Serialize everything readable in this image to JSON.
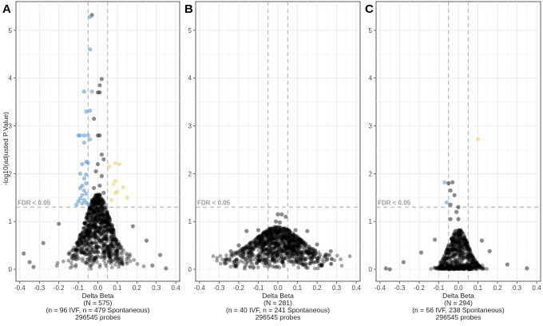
{
  "chart_data": [
    {
      "type": "scatter",
      "panel": "A",
      "ylabel": "-log10(adjusted P.Value)",
      "xlabel_lines": [
        "Delta Beta",
        "(N = 575)",
        "(n = 96 IVF, n = 479 Spontaneous)",
        "296545 probes"
      ],
      "xlim": [
        -0.42,
        0.42
      ],
      "ylim": [
        -0.25,
        5.6
      ],
      "xticks": [
        "-0.4",
        "-0.3",
        "-0.2",
        "-0.1",
        "0.0",
        "0.1",
        "0.2",
        "0.3",
        "0.4"
      ],
      "xtick_values": [
        -0.4,
        -0.3,
        -0.2,
        -0.1,
        0.0,
        0.1,
        0.2,
        0.3,
        0.4
      ],
      "yticks": [
        "0",
        "1",
        "2",
        "3",
        "4",
        "5"
      ],
      "ytick_values": [
        0,
        1,
        2,
        3,
        4,
        5
      ],
      "vlines": [
        -0.05,
        0.05
      ],
      "hline": 1.3,
      "fdr_label": "FDR < 0.05",
      "colors": {
        "ns": "#000000",
        "down": "#5b9bd5",
        "up": "#f0d070",
        "ref": "#aaaaaa"
      },
      "cloud": {
        "sx": 0.062,
        "peak": 1.3,
        "floor": 0.28,
        "count": 900
      },
      "points": [
        {
          "x": -0.03,
          "y": 5.32,
          "c": "ns"
        },
        {
          "x": -0.04,
          "y": 5.28,
          "c": "down"
        },
        {
          "x": -0.04,
          "y": 4.6,
          "c": "down"
        },
        {
          "x": 0.02,
          "y": 3.98,
          "c": "ns"
        },
        {
          "x": 0.01,
          "y": 3.85,
          "c": "ns"
        },
        {
          "x": -0.07,
          "y": 3.72,
          "c": "down"
        },
        {
          "x": -0.03,
          "y": 3.72,
          "c": "down"
        },
        {
          "x": 0.0,
          "y": 3.7,
          "c": "ns"
        },
        {
          "x": 0.01,
          "y": 3.7,
          "c": "ns"
        },
        {
          "x": -0.06,
          "y": 3.3,
          "c": "down"
        },
        {
          "x": -0.04,
          "y": 3.32,
          "c": "down"
        },
        {
          "x": -0.02,
          "y": 3.15,
          "c": "ns"
        },
        {
          "x": -0.1,
          "y": 2.8,
          "c": "down"
        },
        {
          "x": -0.09,
          "y": 2.8,
          "c": "down"
        },
        {
          "x": -0.07,
          "y": 2.8,
          "c": "down"
        },
        {
          "x": -0.05,
          "y": 2.8,
          "c": "down"
        },
        {
          "x": 0.0,
          "y": 2.8,
          "c": "ns"
        },
        {
          "x": 0.01,
          "y": 2.8,
          "c": "ns"
        },
        {
          "x": -0.07,
          "y": 2.65,
          "c": "down"
        },
        {
          "x": -0.04,
          "y": 2.72,
          "c": "down"
        },
        {
          "x": -0.06,
          "y": 2.25,
          "c": "down"
        },
        {
          "x": -0.05,
          "y": 2.22,
          "c": "down"
        },
        {
          "x": -0.08,
          "y": 2.2,
          "c": "down"
        },
        {
          "x": 0.09,
          "y": 2.22,
          "c": "up"
        },
        {
          "x": 0.11,
          "y": 2.2,
          "c": "up"
        },
        {
          "x": 0.06,
          "y": 2.15,
          "c": "up"
        },
        {
          "x": -0.09,
          "y": 2.0,
          "c": "down"
        },
        {
          "x": -0.06,
          "y": 1.98,
          "c": "down"
        },
        {
          "x": -0.07,
          "y": 1.9,
          "c": "down"
        },
        {
          "x": 0.09,
          "y": 1.85,
          "c": "up"
        },
        {
          "x": 0.08,
          "y": 1.78,
          "c": "up"
        },
        {
          "x": -0.06,
          "y": 1.8,
          "c": "down"
        },
        {
          "x": -0.08,
          "y": 1.75,
          "c": "down"
        },
        {
          "x": -0.09,
          "y": 1.7,
          "c": "down"
        },
        {
          "x": 0.13,
          "y": 1.72,
          "c": "up"
        },
        {
          "x": -0.07,
          "y": 1.65,
          "c": "down"
        },
        {
          "x": 0.1,
          "y": 1.62,
          "c": "up"
        },
        {
          "x": 0.09,
          "y": 1.6,
          "c": "up"
        },
        {
          "x": -0.06,
          "y": 1.58,
          "c": "down"
        },
        {
          "x": -0.08,
          "y": 1.55,
          "c": "down"
        },
        {
          "x": 0.15,
          "y": 1.5,
          "c": "up"
        },
        {
          "x": -0.09,
          "y": 1.48,
          "c": "down"
        },
        {
          "x": -0.07,
          "y": 1.45,
          "c": "down"
        },
        {
          "x": 0.07,
          "y": 1.45,
          "c": "up"
        },
        {
          "x": -0.1,
          "y": 1.42,
          "c": "down"
        },
        {
          "x": -0.06,
          "y": 1.4,
          "c": "down"
        },
        {
          "x": -0.08,
          "y": 1.38,
          "c": "down"
        },
        {
          "x": -0.05,
          "y": 1.36,
          "c": "down"
        },
        {
          "x": -0.11,
          "y": 1.35,
          "c": "down"
        },
        {
          "x": 0.02,
          "y": 2.4,
          "c": "ns"
        },
        {
          "x": 0.03,
          "y": 2.3,
          "c": "ns"
        },
        {
          "x": 0.0,
          "y": 2.2,
          "c": "ns"
        },
        {
          "x": -0.01,
          "y": 2.05,
          "c": "ns"
        },
        {
          "x": 0.02,
          "y": 1.95,
          "c": "ns"
        },
        {
          "x": 0.01,
          "y": 1.75,
          "c": "ns"
        },
        {
          "x": -0.02,
          "y": 1.7,
          "c": "ns"
        },
        {
          "x": 0.03,
          "y": 1.6,
          "c": "ns"
        },
        {
          "x": 0.0,
          "y": 1.5,
          "c": "ns"
        },
        {
          "x": -0.03,
          "y": 1.45,
          "c": "ns"
        },
        {
          "x": -0.38,
          "y": 0.33,
          "c": "ns"
        },
        {
          "x": -0.35,
          "y": 0.15,
          "c": "ns"
        },
        {
          "x": -0.33,
          "y": 0.05,
          "c": "ns"
        },
        {
          "x": 0.32,
          "y": 0.3,
          "c": "ns"
        },
        {
          "x": 0.28,
          "y": 0.08,
          "c": "ns"
        },
        {
          "x": 0.35,
          "y": 0.02,
          "c": "ns"
        },
        {
          "x": -0.28,
          "y": 0.55,
          "c": "ns"
        },
        {
          "x": 0.25,
          "y": 0.6,
          "c": "ns"
        },
        {
          "x": -0.2,
          "y": 0.95,
          "c": "ns"
        },
        {
          "x": 0.18,
          "y": 0.9,
          "c": "ns"
        }
      ]
    },
    {
      "type": "scatter",
      "panel": "B",
      "xlabel_lines": [
        "Delta Beta",
        "(N = 281)",
        "(n = 40 IVF, n = 241 Spontaneous)",
        "296545 probes"
      ],
      "xlim": [
        -0.42,
        0.42
      ],
      "ylim": [
        -0.25,
        5.6
      ],
      "xticks": [
        "-0.4",
        "-0.3",
        "-0.2",
        "-0.1",
        "0.0",
        "0.1",
        "0.2",
        "0.3",
        "0.4"
      ],
      "xtick_values": [
        -0.4,
        -0.3,
        -0.2,
        -0.1,
        0.0,
        0.1,
        0.2,
        0.3,
        0.4
      ],
      "yticks": [
        "0",
        "1",
        "2",
        "3",
        "4",
        "5"
      ],
      "ytick_values": [
        0,
        1,
        2,
        3,
        4,
        5
      ],
      "vlines": [
        -0.05,
        0.05
      ],
      "hline": 1.3,
      "fdr_label": "FDR < 0.05",
      "colors": {
        "ns": "#000000",
        "down": "#5b9bd5",
        "up": "#f0d070",
        "ref": "#aaaaaa"
      },
      "cloud": {
        "sx": 0.11,
        "peak": 0.62,
        "floor": 0.28,
        "count": 1000
      },
      "points": [
        {
          "x": 0.0,
          "y": 1.15,
          "c": "ns"
        },
        {
          "x": 0.02,
          "y": 1.15,
          "c": "ns"
        },
        {
          "x": 0.04,
          "y": 1.1,
          "c": "ns"
        },
        {
          "x": -0.01,
          "y": 1.0,
          "c": "ns"
        },
        {
          "x": 0.01,
          "y": 0.98,
          "c": "ns"
        },
        {
          "x": -0.24,
          "y": 0.38,
          "c": "ns"
        },
        {
          "x": -0.27,
          "y": 0.12,
          "c": "ns"
        },
        {
          "x": 0.27,
          "y": 0.38,
          "c": "ns"
        },
        {
          "x": 0.25,
          "y": 0.2,
          "c": "ns"
        },
        {
          "x": 0.22,
          "y": 0.08,
          "c": "ns"
        },
        {
          "x": -0.22,
          "y": 0.06,
          "c": "ns"
        },
        {
          "x": -0.2,
          "y": 0.5,
          "c": "ns"
        },
        {
          "x": 0.2,
          "y": 0.52,
          "c": "ns"
        },
        {
          "x": -0.16,
          "y": 0.8,
          "c": "ns"
        },
        {
          "x": 0.15,
          "y": 0.8,
          "c": "ns"
        },
        {
          "x": -0.1,
          "y": 0.82,
          "c": "ns"
        },
        {
          "x": 0.09,
          "y": 0.82,
          "c": "ns"
        }
      ]
    },
    {
      "type": "scatter",
      "panel": "C",
      "xlabel_lines": [
        "Delta Beta",
        "(N = 294)",
        "(n = 56 IVF, 238 Spontaneous)",
        "296545 probes"
      ],
      "xlim": [
        -0.42,
        0.42
      ],
      "ylim": [
        -0.25,
        5.6
      ],
      "xticks": [
        "-0.4",
        "-0.3",
        "-0.2",
        "-0.1",
        "0.0",
        "0.1",
        "0.2",
        "0.3",
        "0.4"
      ],
      "xtick_values": [
        -0.4,
        -0.3,
        -0.2,
        -0.1,
        0.0,
        0.1,
        0.2,
        0.3,
        0.4
      ],
      "yticks": [
        "0",
        "1",
        "2",
        "3",
        "4",
        "5"
      ],
      "ytick_values": [
        0,
        1,
        2,
        3,
        4,
        5
      ],
      "vlines": [
        -0.05,
        0.05
      ],
      "hline": 1.3,
      "fdr_label": "FDR < 0.05",
      "colors": {
        "ns": "#000000",
        "down": "#5b9bd5",
        "up": "#f0d070",
        "ref": "#aaaaaa"
      },
      "cloud": {
        "sx": 0.05,
        "peak": 0.85,
        "floor": 0.0,
        "count": 650,
        "baseline_spread": 0.2
      },
      "points": [
        {
          "x": 0.1,
          "y": 2.72,
          "c": "up"
        },
        {
          "x": -0.07,
          "y": 1.82,
          "c": "down"
        },
        {
          "x": -0.05,
          "y": 1.8,
          "c": "ns"
        },
        {
          "x": -0.03,
          "y": 1.82,
          "c": "ns"
        },
        {
          "x": -0.04,
          "y": 1.65,
          "c": "ns"
        },
        {
          "x": -0.06,
          "y": 1.4,
          "c": "down"
        },
        {
          "x": -0.02,
          "y": 1.55,
          "c": "ns"
        },
        {
          "x": 0.0,
          "y": 1.3,
          "c": "ns"
        },
        {
          "x": -0.04,
          "y": 1.35,
          "c": "ns"
        },
        {
          "x": -0.01,
          "y": 1.2,
          "c": "ns"
        },
        {
          "x": 0.0,
          "y": 1.05,
          "c": "ns"
        },
        {
          "x": -0.04,
          "y": 1.05,
          "c": "ns"
        },
        {
          "x": -0.37,
          "y": 0.02,
          "c": "ns"
        },
        {
          "x": -0.35,
          "y": 0.0,
          "c": "ns"
        },
        {
          "x": 0.35,
          "y": 0.02,
          "c": "ns"
        },
        {
          "x": 0.25,
          "y": 0.1,
          "c": "ns"
        },
        {
          "x": -0.28,
          "y": 0.15,
          "c": "ns"
        },
        {
          "x": -0.19,
          "y": 0.35,
          "c": "ns"
        },
        {
          "x": 0.16,
          "y": 0.38,
          "c": "ns"
        },
        {
          "x": 0.12,
          "y": 0.6,
          "c": "ns"
        },
        {
          "x": -0.12,
          "y": 0.62,
          "c": "ns"
        }
      ]
    }
  ]
}
